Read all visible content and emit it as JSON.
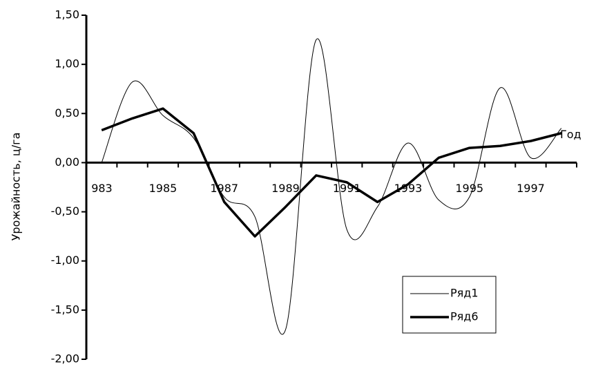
{
  "chart_data": {
    "type": "line",
    "x_label": "Год",
    "y_label": "Урожайность, ц/га",
    "categories": [
      "983",
      null,
      "1985",
      null,
      "1987",
      null,
      "1989",
      null,
      "1991",
      null,
      "1993",
      null,
      "1995",
      null,
      "1997",
      null
    ],
    "series": [
      {
        "name": "Ряд1",
        "color": "#000000",
        "line_width": 1,
        "smooth": true,
        "values": [
          0.0,
          0.82,
          0.48,
          0.25,
          -0.35,
          -0.55,
          -1.7,
          1.25,
          -0.68,
          -0.45,
          0.2,
          -0.38,
          -0.35,
          0.76,
          0.05,
          0.35
        ]
      },
      {
        "name": "Ряд6",
        "color": "#000000",
        "line_width": 3.5,
        "smooth": false,
        "values": [
          0.33,
          0.45,
          0.55,
          0.3,
          -0.4,
          -0.75,
          -0.45,
          -0.13,
          -0.2,
          -0.4,
          -0.22,
          0.05,
          0.15,
          0.17,
          0.22,
          0.3
        ]
      }
    ],
    "ylim": [
      -2,
      1.5
    ],
    "yticks": [
      {
        "value": 1.5,
        "label": "1,50"
      },
      {
        "value": 1,
        "label": "1,00"
      },
      {
        "value": 0.5,
        "label": "0,50"
      },
      {
        "value": 0,
        "label": "0,00"
      },
      {
        "value": -0.5,
        "label": "-0,50"
      },
      {
        "value": -1,
        "label": "-1,00"
      },
      {
        "value": -1.5,
        "label": "-1,50"
      },
      {
        "value": -2,
        "label": "-2,00"
      }
    ],
    "legend": "lower right"
  }
}
